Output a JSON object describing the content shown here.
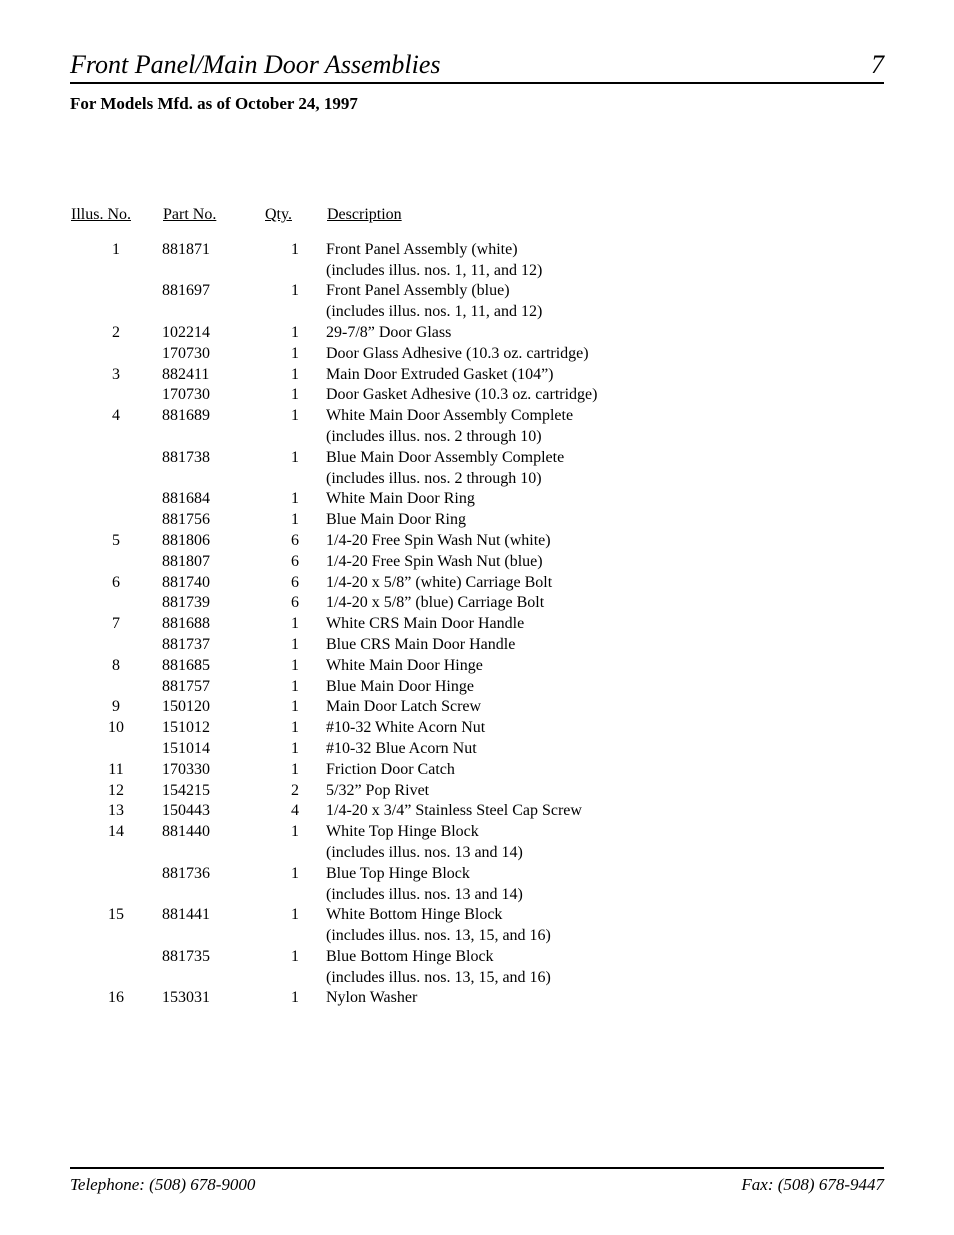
{
  "header": {
    "section_title": "Front Panel/Main Door Assemblies",
    "page_number": "7",
    "subheading": "For Models Mfd. as of October 24, 1997"
  },
  "table": {
    "headers": {
      "illus": "Illus. No.",
      "part": "Part No.",
      "qty": "Qty.",
      "desc": "Description"
    },
    "rows": [
      {
        "illus": "1",
        "part": "881871",
        "qty": "1",
        "desc": "Front Panel Assembly (white)"
      },
      {
        "illus": "",
        "part": "",
        "qty": "",
        "desc": "(includes illus. nos. 1, 11, and 12)"
      },
      {
        "illus": "",
        "part": "881697",
        "qty": "1",
        "desc": "Front Panel Assembly (blue)"
      },
      {
        "illus": "",
        "part": "",
        "qty": "",
        "desc": "(includes illus. nos. 1, 11, and 12)"
      },
      {
        "illus": "2",
        "part": "102214",
        "qty": "1",
        "desc": "29-7/8” Door Glass"
      },
      {
        "illus": "",
        "part": "170730",
        "qty": "1",
        "desc": "Door Glass Adhesive (10.3 oz. cartridge)"
      },
      {
        "illus": "3",
        "part": "882411",
        "qty": "1",
        "desc": "Main Door Extruded Gasket (104”)"
      },
      {
        "illus": "",
        "part": "170730",
        "qty": "1",
        "desc": "Door Gasket Adhesive (10.3 oz. cartridge)"
      },
      {
        "illus": "4",
        "part": "881689",
        "qty": "1",
        "desc": "White Main Door Assembly Complete"
      },
      {
        "illus": "",
        "part": "",
        "qty": "",
        "desc": "(includes illus. nos. 2 through 10)"
      },
      {
        "illus": "",
        "part": "881738",
        "qty": "1",
        "desc": "Blue Main Door Assembly Complete"
      },
      {
        "illus": "",
        "part": "",
        "qty": "",
        "desc": "(includes illus. nos. 2 through 10)"
      },
      {
        "illus": "",
        "part": "881684",
        "qty": "1",
        "desc": "White Main Door Ring"
      },
      {
        "illus": "",
        "part": "881756",
        "qty": "1",
        "desc": "Blue Main Door Ring"
      },
      {
        "illus": "5",
        "part": "881806",
        "qty": "6",
        "desc": "1/4-20 Free Spin Wash Nut (white)"
      },
      {
        "illus": "",
        "part": "881807",
        "qty": "6",
        "desc": "1/4-20 Free Spin Wash Nut (blue)"
      },
      {
        "illus": "6",
        "part": "881740",
        "qty": "6",
        "desc": "1/4-20 x 5/8” (white) Carriage Bolt"
      },
      {
        "illus": "",
        "part": "881739",
        "qty": "6",
        "desc": "1/4-20 x 5/8” (blue) Carriage Bolt"
      },
      {
        "illus": "7",
        "part": "881688",
        "qty": "1",
        "desc": "White CRS Main Door Handle"
      },
      {
        "illus": "",
        "part": "881737",
        "qty": "1",
        "desc": "Blue CRS Main Door Handle"
      },
      {
        "illus": "8",
        "part": "881685",
        "qty": "1",
        "desc": "White Main Door Hinge"
      },
      {
        "illus": "",
        "part": "881757",
        "qty": "1",
        "desc": "Blue Main Door Hinge"
      },
      {
        "illus": "9",
        "part": "150120",
        "qty": "1",
        "desc": "Main Door Latch Screw"
      },
      {
        "illus": "10",
        "part": "151012",
        "qty": "1",
        "desc": "#10-32 White Acorn Nut"
      },
      {
        "illus": "",
        "part": "151014",
        "qty": "1",
        "desc": "#10-32 Blue Acorn Nut"
      },
      {
        "illus": "11",
        "part": "170330",
        "qty": "1",
        "desc": "Friction Door Catch"
      },
      {
        "illus": "12",
        "part": "154215",
        "qty": "2",
        "desc": "5/32” Pop Rivet"
      },
      {
        "illus": "13",
        "part": "150443",
        "qty": "4",
        "desc": "1/4-20 x 3/4” Stainless Steel Cap Screw"
      },
      {
        "illus": "14",
        "part": "881440",
        "qty": "1",
        "desc": "White Top Hinge Block"
      },
      {
        "illus": "",
        "part": "",
        "qty": "",
        "desc": "(includes illus. nos. 13 and 14)"
      },
      {
        "illus": "",
        "part": "881736",
        "qty": "1",
        "desc": "Blue Top Hinge Block"
      },
      {
        "illus": "",
        "part": "",
        "qty": "",
        "desc": "(includes illus. nos. 13 and 14)"
      },
      {
        "illus": "15",
        "part": "881441",
        "qty": "1",
        "desc": "White Bottom Hinge Block"
      },
      {
        "illus": "",
        "part": "",
        "qty": "",
        "desc": "(includes illus. nos. 13, 15, and 16)"
      },
      {
        "illus": "",
        "part": "881735",
        "qty": "1",
        "desc": "Blue Bottom Hinge Block"
      },
      {
        "illus": "",
        "part": "",
        "qty": "",
        "desc": "(includes illus. nos. 13, 15, and 16)"
      },
      {
        "illus": "16",
        "part": "153031",
        "qty": "1",
        "desc": "Nylon Washer"
      }
    ]
  },
  "footer": {
    "telephone": "Telephone: (508) 678-9000",
    "fax": "Fax: (508) 678-9447"
  },
  "style": {
    "page_bg": "#ffffff",
    "text_color": "#000000",
    "rule_color": "#000000",
    "title_fontsize": 26,
    "body_fontsize": 16
  }
}
